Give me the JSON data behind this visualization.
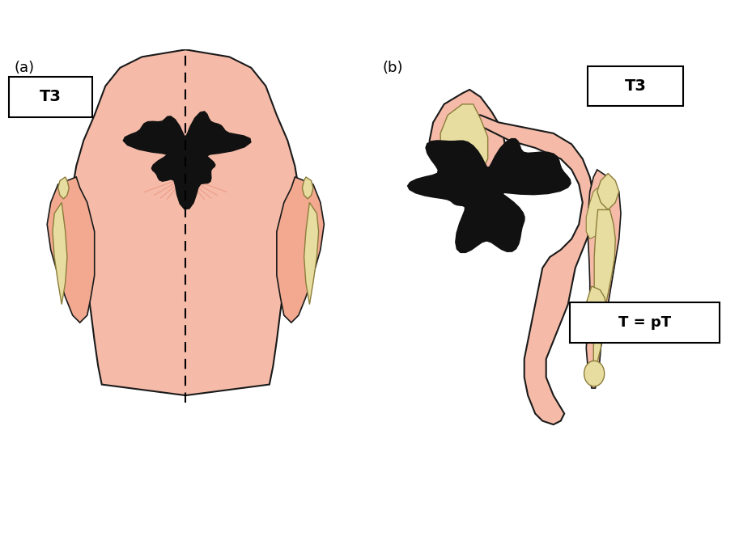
{
  "bg_color": "#ffffff",
  "salmon_color": "#F2A990",
  "salmon_light": "#F5BBA8",
  "salmon_dark": "#E8907A",
  "outline_color": "#1a1a1a",
  "bone_color": "#E8E0B0",
  "bone_outline": "#C8B870",
  "tumor_color": "#111111",
  "cream_color": "#E8DDA0",
  "cream_light": "#F0EBC0",
  "label_a": "(a)",
  "label_b": "(b)",
  "title": "T3",
  "subtitle": "T = pT"
}
